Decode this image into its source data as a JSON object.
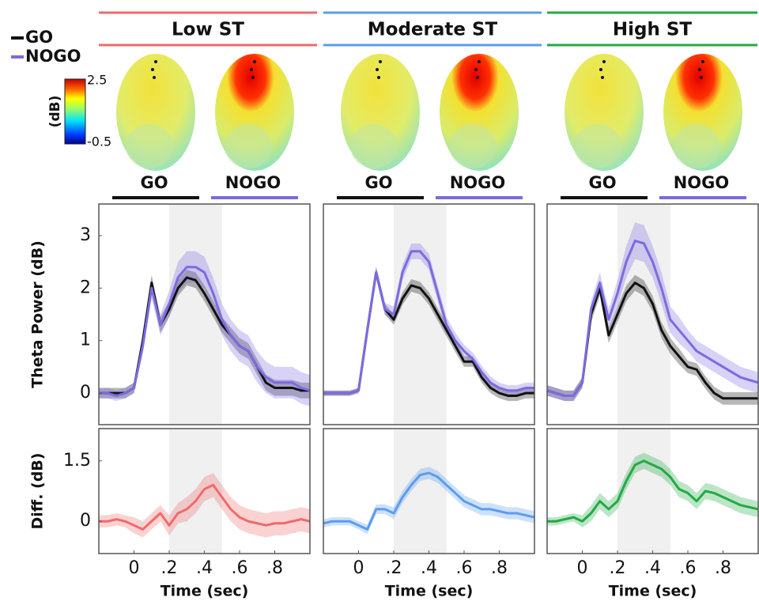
{
  "legend": {
    "items": [
      {
        "name": "GO",
        "color": "#111111"
      },
      {
        "name": "NOGO",
        "color": "#7b6be0"
      }
    ]
  },
  "colorbar": {
    "label": "(dB)",
    "ticks": [
      2.5,
      -0.5
    ]
  },
  "groups": [
    {
      "title": "Low ST",
      "color": "#ef6b6b",
      "labels": [
        "GO",
        "NOGO"
      ]
    },
    {
      "title": "Moderate ST",
      "color": "#5b9cf0",
      "labels": [
        "GO",
        "NOGO"
      ]
    },
    {
      "title": "High ST",
      "color": "#22aa44",
      "labels": [
        "GO",
        "NOGO"
      ]
    }
  ],
  "chart_data": [
    {
      "type": "line",
      "ylabel": "Theta Power (dB)",
      "shade": [
        0.2,
        0.5
      ],
      "xlim": [
        -0.2,
        1.0
      ],
      "ylim": [
        -0.6,
        3.6
      ],
      "yticks": [
        0,
        1,
        2,
        3
      ],
      "x": [
        -0.2,
        -0.15,
        -0.1,
        -0.05,
        0,
        0.05,
        0.1,
        0.15,
        0.2,
        0.25,
        0.3,
        0.35,
        0.4,
        0.45,
        0.5,
        0.55,
        0.6,
        0.65,
        0.7,
        0.75,
        0.8,
        0.85,
        0.9,
        0.95,
        1.0
      ],
      "series": [
        {
          "name": "GO",
          "color": "#111111",
          "values": [
            0,
            0,
            0,
            0,
            0.1,
            1.0,
            2.1,
            1.3,
            1.6,
            2.0,
            2.2,
            2.15,
            1.9,
            1.6,
            1.3,
            1.1,
            0.9,
            0.8,
            0.5,
            0.2,
            0.1,
            0.1,
            0.1,
            0.05,
            0.05
          ],
          "errors": [
            0.1,
            0.1,
            0.1,
            0.1,
            0.1,
            0.1,
            0.15,
            0.15,
            0.15,
            0.15,
            0.15,
            0.15,
            0.15,
            0.15,
            0.15,
            0.15,
            0.15,
            0.15,
            0.15,
            0.15,
            0.15,
            0.15,
            0.15,
            0.15,
            0.15
          ]
        },
        {
          "name": "NOGO",
          "color": "#7b6be0",
          "values": [
            0,
            0,
            -0.05,
            0,
            0.1,
            0.9,
            2.0,
            1.3,
            1.7,
            2.2,
            2.4,
            2.4,
            2.3,
            1.9,
            1.4,
            1.1,
            0.9,
            0.8,
            0.5,
            0.3,
            0.2,
            0.2,
            0.2,
            0.1,
            0.05
          ],
          "errors": [
            0.1,
            0.1,
            0.1,
            0.1,
            0.1,
            0.15,
            0.2,
            0.2,
            0.25,
            0.3,
            0.3,
            0.3,
            0.3,
            0.3,
            0.3,
            0.3,
            0.3,
            0.3,
            0.3,
            0.3,
            0.3,
            0.3,
            0.3,
            0.3,
            0.3
          ]
        }
      ]
    },
    {
      "type": "line",
      "shade": [
        0.2,
        0.5
      ],
      "xlim": [
        -0.2,
        1.0
      ],
      "ylim": [
        -0.6,
        3.6
      ],
      "x": [
        -0.2,
        -0.15,
        -0.1,
        -0.05,
        0,
        0.05,
        0.1,
        0.15,
        0.2,
        0.25,
        0.3,
        0.35,
        0.4,
        0.45,
        0.5,
        0.55,
        0.6,
        0.65,
        0.7,
        0.75,
        0.8,
        0.85,
        0.9,
        0.95,
        1.0
      ],
      "series": [
        {
          "name": "GO",
          "color": "#111111",
          "values": [
            0,
            0,
            0,
            0,
            0.05,
            1.2,
            2.3,
            1.6,
            1.4,
            1.8,
            2.05,
            2.0,
            1.8,
            1.5,
            1.2,
            0.9,
            0.6,
            0.6,
            0.3,
            0.1,
            0,
            -0.05,
            -0.05,
            0,
            0
          ],
          "errors": [
            0.05,
            0.05,
            0.05,
            0.05,
            0.05,
            0.1,
            0.1,
            0.1,
            0.1,
            0.12,
            0.12,
            0.12,
            0.12,
            0.12,
            0.12,
            0.12,
            0.1,
            0.1,
            0.1,
            0.1,
            0.1,
            0.1,
            0.1,
            0.1,
            0.1
          ]
        },
        {
          "name": "NOGO",
          "color": "#7b6be0",
          "values": [
            0,
            0,
            0,
            0,
            0.05,
            1.2,
            2.3,
            1.6,
            1.5,
            2.3,
            2.7,
            2.7,
            2.5,
            1.9,
            1.3,
            1.0,
            0.8,
            0.65,
            0.4,
            0.2,
            0.1,
            0.05,
            0.05,
            0.1,
            0.1
          ],
          "errors": [
            0.05,
            0.05,
            0.05,
            0.05,
            0.05,
            0.1,
            0.12,
            0.12,
            0.15,
            0.15,
            0.15,
            0.15,
            0.15,
            0.15,
            0.15,
            0.15,
            0.12,
            0.12,
            0.12,
            0.12,
            0.1,
            0.1,
            0.1,
            0.1,
            0.1
          ]
        }
      ]
    },
    {
      "type": "line",
      "shade": [
        0.2,
        0.5
      ],
      "xlim": [
        -0.2,
        1.0
      ],
      "ylim": [
        -0.6,
        3.6
      ],
      "x": [
        -0.2,
        -0.15,
        -0.1,
        -0.05,
        0,
        0.05,
        0.1,
        0.15,
        0.2,
        0.25,
        0.3,
        0.35,
        0.4,
        0.45,
        0.5,
        0.55,
        0.6,
        0.65,
        0.7,
        0.75,
        0.8,
        0.85,
        0.9,
        0.95,
        1.0
      ],
      "series": [
        {
          "name": "GO",
          "color": "#111111",
          "values": [
            0.05,
            0,
            -0.05,
            -0.05,
            0.2,
            1.5,
            2.0,
            1.1,
            1.5,
            1.9,
            2.1,
            2.0,
            1.7,
            1.2,
            0.9,
            0.7,
            0.5,
            0.45,
            0.2,
            0,
            -0.1,
            -0.1,
            -0.1,
            -0.1,
            -0.1
          ],
          "errors": [
            0.1,
            0.1,
            0.1,
            0.1,
            0.1,
            0.15,
            0.15,
            0.15,
            0.15,
            0.15,
            0.15,
            0.15,
            0.15,
            0.15,
            0.15,
            0.15,
            0.12,
            0.12,
            0.12,
            0.12,
            0.12,
            0.12,
            0.12,
            0.12,
            0.12
          ]
        },
        {
          "name": "NOGO",
          "color": "#7b6be0",
          "values": [
            0.05,
            0,
            -0.05,
            -0.05,
            0.2,
            1.6,
            2.1,
            1.4,
            1.9,
            2.5,
            2.9,
            2.85,
            2.5,
            2.0,
            1.4,
            1.2,
            1.0,
            0.8,
            0.7,
            0.6,
            0.5,
            0.4,
            0.3,
            0.25,
            0.2
          ],
          "errors": [
            0.1,
            0.1,
            0.1,
            0.1,
            0.1,
            0.15,
            0.2,
            0.2,
            0.25,
            0.3,
            0.35,
            0.35,
            0.3,
            0.3,
            0.25,
            0.25,
            0.2,
            0.2,
            0.2,
            0.2,
            0.2,
            0.2,
            0.2,
            0.2,
            0.2
          ]
        }
      ]
    },
    {
      "type": "line",
      "ylabel": "Diff. (dB)",
      "xlabel": "Time (sec)",
      "shade": [
        0.2,
        0.5
      ],
      "xlim": [
        -0.2,
        1.0
      ],
      "ylim": [
        -0.8,
        2.3
      ],
      "yticks": [
        0,
        1.5
      ],
      "xticks": [
        0,
        {
          "value": 0.2,
          "label": ".2"
        },
        {
          "value": 0.4,
          "label": ".4"
        },
        {
          "value": 0.6,
          "label": ".6"
        },
        {
          "value": 0.8,
          "label": ".8"
        }
      ],
      "x": [
        -0.2,
        -0.15,
        -0.1,
        -0.05,
        0,
        0.05,
        0.1,
        0.15,
        0.2,
        0.25,
        0.3,
        0.35,
        0.4,
        0.45,
        0.5,
        0.55,
        0.6,
        0.65,
        0.7,
        0.75,
        0.8,
        0.85,
        0.9,
        0.95,
        1.0
      ],
      "series": [
        {
          "name": "Low ST",
          "color": "#ef6b6b",
          "values": [
            0,
            0,
            0.05,
            0,
            -0.1,
            -0.2,
            0,
            0.2,
            -0.1,
            0.2,
            0.3,
            0.5,
            0.8,
            0.9,
            0.6,
            0.3,
            0.1,
            0,
            -0.05,
            -0.1,
            -0.05,
            -0.05,
            0,
            0.05,
            0
          ],
          "errors": [
            0.15,
            0.15,
            0.15,
            0.15,
            0.2,
            0.2,
            0.2,
            0.2,
            0.25,
            0.25,
            0.3,
            0.3,
            0.3,
            0.3,
            0.3,
            0.3,
            0.3,
            0.3,
            0.3,
            0.3,
            0.3,
            0.3,
            0.3,
            0.3,
            0.3
          ]
        }
      ]
    },
    {
      "type": "line",
      "xlabel": "Time (sec)",
      "shade": [
        0.2,
        0.5
      ],
      "xlim": [
        -0.2,
        1.0
      ],
      "ylim": [
        -0.8,
        2.3
      ],
      "xticks": [
        0,
        {
          "value": 0.2,
          "label": ".2"
        },
        {
          "value": 0.4,
          "label": ".4"
        },
        {
          "value": 0.6,
          "label": ".6"
        },
        {
          "value": 0.8,
          "label": ".8"
        }
      ],
      "x": [
        -0.2,
        -0.15,
        -0.1,
        -0.05,
        0,
        0.05,
        0.1,
        0.15,
        0.2,
        0.25,
        0.3,
        0.35,
        0.4,
        0.45,
        0.5,
        0.55,
        0.6,
        0.65,
        0.7,
        0.75,
        0.8,
        0.85,
        0.9,
        0.95,
        1.0
      ],
      "series": [
        {
          "name": "Moderate ST",
          "color": "#5b9cf0",
          "values": [
            -0.05,
            0,
            0,
            0,
            -0.1,
            -0.2,
            0.3,
            0.3,
            0.2,
            0.6,
            0.9,
            1.15,
            1.2,
            1.1,
            0.9,
            0.7,
            0.5,
            0.4,
            0.3,
            0.3,
            0.25,
            0.2,
            0.2,
            0.15,
            0.1
          ],
          "errors": [
            0.1,
            0.1,
            0.1,
            0.1,
            0.1,
            0.12,
            0.12,
            0.12,
            0.15,
            0.15,
            0.15,
            0.15,
            0.15,
            0.15,
            0.15,
            0.15,
            0.15,
            0.15,
            0.15,
            0.15,
            0.15,
            0.15,
            0.15,
            0.15,
            0.15
          ]
        }
      ]
    },
    {
      "type": "line",
      "xlabel": "Time (sec)",
      "shade": [
        0.2,
        0.5
      ],
      "xlim": [
        -0.2,
        1.0
      ],
      "ylim": [
        -0.8,
        2.3
      ],
      "xticks": [
        0,
        {
          "value": 0.2,
          "label": ".2"
        },
        {
          "value": 0.4,
          "label": ".4"
        },
        {
          "value": 0.6,
          "label": ".6"
        },
        {
          "value": 0.8,
          "label": ".8"
        }
      ],
      "x": [
        -0.2,
        -0.15,
        -0.1,
        -0.05,
        0,
        0.05,
        0.1,
        0.15,
        0.2,
        0.25,
        0.3,
        0.35,
        0.4,
        0.45,
        0.5,
        0.55,
        0.6,
        0.65,
        0.7,
        0.75,
        0.8,
        0.85,
        0.9,
        0.95,
        1.0
      ],
      "series": [
        {
          "name": "High ST",
          "color": "#22aa44",
          "values": [
            0,
            0,
            0.05,
            0.1,
            0,
            0.2,
            0.5,
            0.3,
            0.5,
            1.0,
            1.4,
            1.5,
            1.4,
            1.3,
            1.1,
            0.8,
            0.7,
            0.5,
            0.75,
            0.7,
            0.6,
            0.5,
            0.4,
            0.35,
            0.3
          ],
          "errors": [
            0.1,
            0.1,
            0.1,
            0.1,
            0.15,
            0.2,
            0.2,
            0.2,
            0.2,
            0.2,
            0.2,
            0.2,
            0.2,
            0.2,
            0.2,
            0.2,
            0.2,
            0.2,
            0.2,
            0.2,
            0.2,
            0.2,
            0.2,
            0.2,
            0.2
          ]
        }
      ]
    }
  ]
}
